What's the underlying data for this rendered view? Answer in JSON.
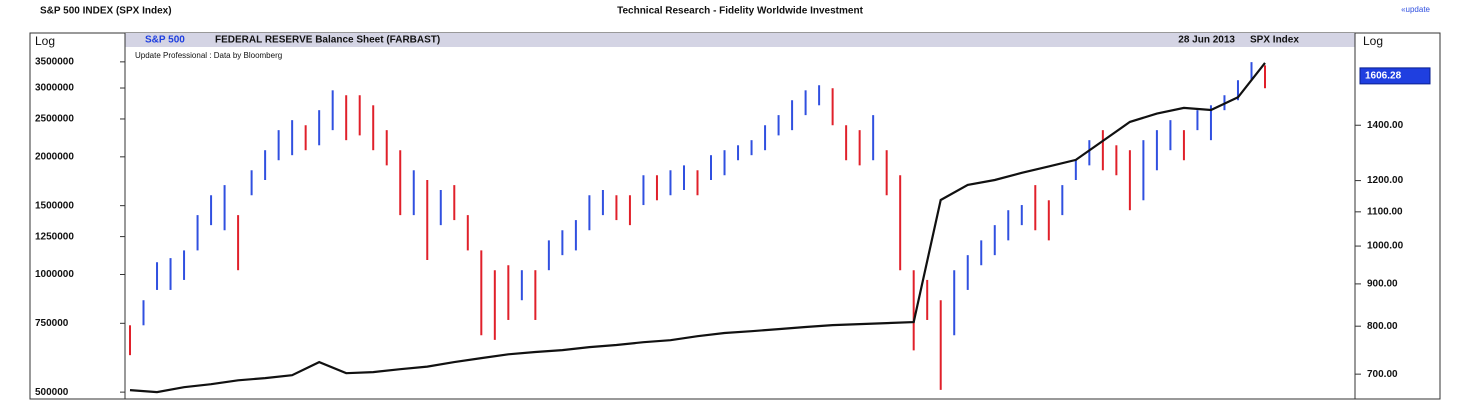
{
  "page_header": {
    "left": "S&P 500 INDEX (SPX Index)",
    "center": "Technical Research - Fidelity Worldwide Investment",
    "link": "«update"
  },
  "chart_data": {
    "type": "ohlc",
    "title": "FEDERAL RESERVE Balance Sheet (FARBAST)",
    "date": "28 Jun 2013",
    "ticker": "SPX Index",
    "source": "Update Professional : Data by Bloomberg",
    "ylabel": "Log",
    "y2label": "Log",
    "ylog": true,
    "y2log": true,
    "ylim": [
      483000,
      4100000
    ],
    "yticks": [
      500000,
      750000,
      1000000,
      1250000,
      1500000,
      2000000,
      2500000,
      3000000,
      3500000
    ],
    "y2lim": [
      655,
      1800
    ],
    "y2ticks": [
      {
        "value": 700,
        "label": "700.00"
      },
      {
        "value": 800,
        "label": "800.00"
      },
      {
        "value": 900,
        "label": "900.00"
      },
      {
        "value": 1000,
        "label": "1000.00"
      },
      {
        "value": 1100,
        "label": "1100.00"
      },
      {
        "value": 1200,
        "label": "1200.00"
      },
      {
        "value": 1400,
        "label": "1400.00"
      }
    ],
    "last_value": 1606.28,
    "series": [
      {
        "name": "S&P 500",
        "type": "ohlc",
        "axis": "y2",
        "color": "#1f3fe0",
        "high": [
          802,
          860,
          956,
          967,
          988,
          1090,
          1152,
          1185,
          1090,
          1235,
          1306,
          1381,
          1420,
          1400,
          1460,
          1543,
          1522,
          1522,
          1480,
          1381,
          1306,
          1235,
          1202,
          1169,
          1185,
          1090,
          988,
          935,
          948,
          935,
          935,
          1016,
          1045,
          1075,
          1152,
          1169,
          1152,
          1152,
          1218,
          1218,
          1235,
          1252,
          1235,
          1288,
          1306,
          1324,
          1343,
          1400,
          1440,
          1501,
          1543,
          1565,
          1552,
          1400,
          1381,
          1440,
          1306,
          1218,
          935,
          910,
          860,
          935,
          975,
          1016,
          1060,
          1105,
          1121,
          1185,
          1136,
          1185,
          1270,
          1343,
          1381,
          1324,
          1306,
          1343,
          1381,
          1420,
          1381,
          1460,
          1480,
          1522,
          1587,
          1669,
          1654
        ],
        "low": [
          738,
          802,
          885,
          885,
          910,
          988,
          1060,
          1045,
          935,
          1152,
          1202,
          1270,
          1288,
          1306,
          1324,
          1381,
          1343,
          1361,
          1306,
          1252,
          1090,
          1090,
          962,
          1060,
          1075,
          988,
          780,
          770,
          814,
          860,
          814,
          935,
          975,
          988,
          1045,
          1090,
          1075,
          1060,
          1121,
          1136,
          1152,
          1169,
          1152,
          1202,
          1218,
          1270,
          1288,
          1306,
          1361,
          1381,
          1440,
          1480,
          1400,
          1270,
          1252,
          1270,
          1152,
          935,
          748,
          814,
          670,
          780,
          885,
          948,
          975,
          1016,
          1060,
          1045,
          1016,
          1090,
          1202,
          1252,
          1235,
          1218,
          1105,
          1136,
          1235,
          1306,
          1270,
          1381,
          1343,
          1460,
          1501,
          1587,
          1552
        ],
        "colors": [
          "#e0202a",
          "#3050e0",
          "#3050e0",
          "#3050e0",
          "#3050e0",
          "#3050e0",
          "#3050e0",
          "#3050e0",
          "#e0202a",
          "#3050e0",
          "#3050e0",
          "#3050e0",
          "#3050e0",
          "#e0202a",
          "#3050e0",
          "#3050e0",
          "#e0202a",
          "#e0202a",
          "#e0202a",
          "#e0202a",
          "#e0202a",
          "#3050e0",
          "#e0202a",
          "#3050e0",
          "#e0202a",
          "#e0202a",
          "#e0202a",
          "#e0202a",
          "#e0202a",
          "#3050e0",
          "#e0202a",
          "#3050e0",
          "#3050e0",
          "#3050e0",
          "#3050e0",
          "#3050e0",
          "#e0202a",
          "#e0202a",
          "#3050e0",
          "#e0202a",
          "#3050e0",
          "#3050e0",
          "#e0202a",
          "#3050e0",
          "#3050e0",
          "#3050e0",
          "#3050e0",
          "#3050e0",
          "#3050e0",
          "#3050e0",
          "#3050e0",
          "#3050e0",
          "#e0202a",
          "#e0202a",
          "#e0202a",
          "#3050e0",
          "#e0202a",
          "#e0202a",
          "#e0202a",
          "#e0202a",
          "#e0202a",
          "#3050e0",
          "#3050e0",
          "#3050e0",
          "#3050e0",
          "#3050e0",
          "#3050e0",
          "#e0202a",
          "#e0202a",
          "#3050e0",
          "#3050e0",
          "#3050e0",
          "#e0202a",
          "#e0202a",
          "#e0202a",
          "#3050e0",
          "#3050e0",
          "#3050e0",
          "#e0202a",
          "#3050e0",
          "#3050e0",
          "#3050e0",
          "#3050e0",
          "#3050e0",
          "#e0202a"
        ]
      },
      {
        "name": "FEDERAL RESERVE Balance Sheet (FARBAST)",
        "type": "line",
        "axis": "y",
        "color": "#111111",
        "values": [
          505900,
          500000,
          514800,
          523900,
          536000,
          543000,
          552600,
          596700,
          559000,
          562500,
          572300,
          581000,
          596700,
          610900,
          625000,
          633500,
          640600,
          652000,
          660000,
          671000,
          679000,
          695000,
          708200,
          716000,
          725000,
          733700,
          742300,
          746500,
          751000,
          755400,
          1551000,
          1695000,
          1745000,
          1820000,
          1890000,
          1964000,
          2197000,
          2457000,
          2580000,
          2669000,
          2635000,
          2840000,
          3479000
        ]
      }
    ]
  }
}
